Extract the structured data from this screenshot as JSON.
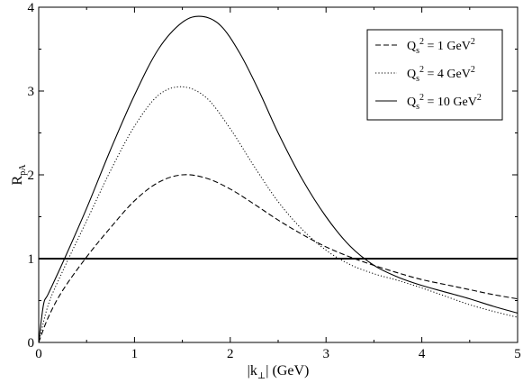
{
  "chart_data": {
    "type": "line",
    "xlabel": {
      "pre": "|k",
      "sub": "⊥",
      "post": "| (GeV)"
    },
    "ylabel": {
      "main": "R",
      "sub": "pA"
    },
    "xlim": [
      0,
      5
    ],
    "ylim": [
      0,
      4
    ],
    "xticks": [
      0,
      1,
      2,
      3,
      4,
      5
    ],
    "yticks": [
      0,
      1,
      2,
      3,
      4
    ],
    "grid": false,
    "legend_position": "top-right",
    "reference_line": {
      "y": 1
    },
    "series": [
      {
        "name": "Qs² = 1 GeV²",
        "legend": {
          "pre": "Q",
          "sub": "s",
          "sup1": "2",
          "mid": " = 1 GeV",
          "sup2": "2"
        },
        "style": "dashed",
        "x": [
          0,
          0.1,
          0.25,
          0.5,
          0.75,
          1.0,
          1.25,
          1.5,
          1.75,
          2.0,
          2.25,
          2.5,
          2.75,
          3.0,
          3.25,
          3.5,
          3.75,
          4.0,
          4.25,
          4.5,
          4.75,
          5.0
        ],
        "y": [
          0.0,
          0.3,
          0.62,
          1.02,
          1.37,
          1.69,
          1.91,
          2.0,
          1.96,
          1.83,
          1.65,
          1.46,
          1.29,
          1.14,
          1.02,
          0.92,
          0.83,
          0.75,
          0.69,
          0.63,
          0.57,
          0.52
        ]
      },
      {
        "name": "Qs² = 4 GeV²",
        "legend": {
          "pre": "Q",
          "sub": "s",
          "sup1": "2",
          "mid": " = 4 GeV",
          "sup2": "2"
        },
        "style": "dotted",
        "x": [
          0,
          0.1,
          0.25,
          0.5,
          0.75,
          1.0,
          1.25,
          1.5,
          1.75,
          2.0,
          2.25,
          2.5,
          2.75,
          3.0,
          3.25,
          3.5,
          3.75,
          4.0,
          4.25,
          4.5,
          4.75,
          5.0
        ],
        "y": [
          0.0,
          0.45,
          0.85,
          1.45,
          2.05,
          2.58,
          2.95,
          3.05,
          2.92,
          2.55,
          2.1,
          1.68,
          1.35,
          1.1,
          0.93,
          0.82,
          0.74,
          0.65,
          0.55,
          0.45,
          0.37,
          0.3
        ]
      },
      {
        "name": "Qs² = 10 GeV²",
        "legend": {
          "pre": "Q",
          "sub": "s",
          "sup1": "2",
          "mid": " = 10 GeV",
          "sup2": "2"
        },
        "style": "solid",
        "x": [
          0,
          0.05,
          0.1,
          0.25,
          0.5,
          0.75,
          1.0,
          1.25,
          1.5,
          1.7,
          1.9,
          2.1,
          2.3,
          2.5,
          2.75,
          3.0,
          3.25,
          3.5,
          3.75,
          4.0,
          4.25,
          4.5,
          4.75,
          5.0
        ],
        "y": [
          0.0,
          0.45,
          0.58,
          0.95,
          1.6,
          2.3,
          2.95,
          3.5,
          3.82,
          3.89,
          3.78,
          3.45,
          3.0,
          2.5,
          1.95,
          1.5,
          1.15,
          0.92,
          0.78,
          0.68,
          0.6,
          0.52,
          0.43,
          0.35
        ]
      }
    ]
  }
}
